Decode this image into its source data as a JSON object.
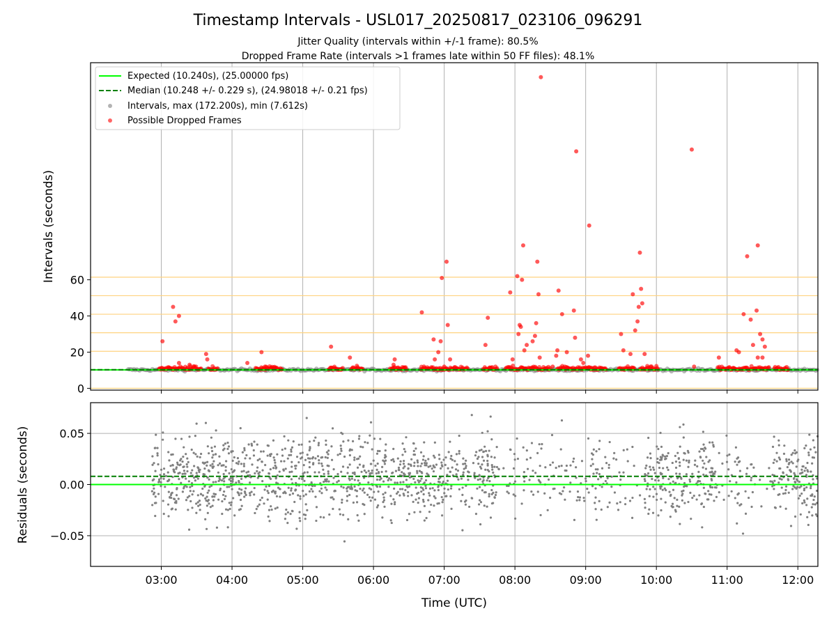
{
  "chart_data": {
    "type": "scatter",
    "title": "Timestamp Intervals - USL017_20250817_023106_096291",
    "subtitle_lines": [
      "Jitter Quality (intervals within +/-1 frame): 80.5%",
      "Dropped Frame Rate (intervals >1 frames late within 50 FF files): 48.1%"
    ],
    "xlabel": "Time (UTC)",
    "x_tick_labels": [
      "03:00",
      "04:00",
      "05:00",
      "06:00",
      "07:00",
      "08:00",
      "09:00",
      "10:00",
      "11:00",
      "12:00"
    ],
    "x_range": [
      "02:00",
      "12:17"
    ],
    "grid": true,
    "legend_position": "top-left",
    "legend": [
      {
        "label": "Expected (10.240s), (25.00000 fps)",
        "marker": "line",
        "color": "#00ff00"
      },
      {
        "label": "Median (10.248 +/- 0.229 s), (24.98018 +/- 0.21 fps)",
        "marker": "dashed-line",
        "color": "#007f00"
      },
      {
        "label": "Intervals, max (172.200s), min (7.612s)",
        "marker": "dot",
        "color": "#808080"
      },
      {
        "label": "Possible Dropped Frames",
        "marker": "dot",
        "color": "#ff0000"
      }
    ],
    "top_panel": {
      "ylabel": "Intervals (seconds)",
      "y_tick_labels": [
        "0",
        "20",
        "40",
        "60"
      ],
      "ylim": [
        -1,
        180
      ],
      "frame_multiple_lines": [
        0,
        10.24,
        20.48,
        30.72,
        40.96,
        51.2,
        61.44
      ],
      "frame_line_color": "#ffd27f",
      "expected": 10.24,
      "median": 10.248,
      "normal_interval_range": [
        "02:32",
        "12:17"
      ],
      "dropped_frame_band_segments": [
        [
          "02:58",
          "03:34"
        ],
        [
          "03:40",
          "03:48"
        ],
        [
          "04:20",
          "04:43"
        ],
        [
          "05:22",
          "05:34"
        ],
        [
          "05:41",
          "05:51"
        ],
        [
          "06:14",
          "06:28"
        ],
        [
          "06:40",
          "07:20"
        ],
        [
          "07:33",
          "07:45"
        ],
        [
          "07:52",
          "08:30"
        ],
        [
          "08:36",
          "09:18"
        ],
        [
          "09:28",
          "09:42"
        ],
        [
          "09:46",
          "10:02"
        ],
        [
          "10:52",
          "11:36"
        ],
        [
          "11:40",
          "11:52"
        ]
      ],
      "dropped_frames": [
        [
          "03:01",
          26
        ],
        [
          "03:10",
          45
        ],
        [
          "03:12",
          37
        ],
        [
          "03:15",
          40
        ],
        [
          "03:15",
          14
        ],
        [
          "03:24",
          13
        ],
        [
          "03:38",
          19
        ],
        [
          "03:39",
          16
        ],
        [
          "04:13",
          14
        ],
        [
          "04:25",
          20
        ],
        [
          "04:28",
          12
        ],
        [
          "05:24",
          23
        ],
        [
          "05:40",
          17
        ],
        [
          "06:17",
          13
        ],
        [
          "06:18",
          16
        ],
        [
          "06:41",
          42
        ],
        [
          "06:51",
          27
        ],
        [
          "06:52",
          16
        ],
        [
          "06:55",
          20
        ],
        [
          "06:57",
          26
        ],
        [
          "06:58",
          61
        ],
        [
          "07:00",
          12
        ],
        [
          "07:02",
          70
        ],
        [
          "07:03",
          35
        ],
        [
          "07:05",
          16
        ],
        [
          "07:35",
          24
        ],
        [
          "07:37",
          39
        ],
        [
          "07:56",
          53
        ],
        [
          "07:58",
          16
        ],
        [
          "08:02",
          62
        ],
        [
          "08:03",
          30
        ],
        [
          "08:04",
          35
        ],
        [
          "08:05",
          34
        ],
        [
          "08:06",
          60
        ],
        [
          "08:07",
          79
        ],
        [
          "08:08",
          21
        ],
        [
          "08:10",
          24
        ],
        [
          "08:15",
          26
        ],
        [
          "08:17",
          29
        ],
        [
          "08:18",
          36
        ],
        [
          "08:19",
          70
        ],
        [
          "08:20",
          52
        ],
        [
          "08:21",
          17
        ],
        [
          "08:22",
          172
        ],
        [
          "08:32",
          12
        ],
        [
          "08:35",
          18
        ],
        [
          "08:36",
          21
        ],
        [
          "08:37",
          54
        ],
        [
          "08:40",
          41
        ],
        [
          "08:44",
          20
        ],
        [
          "08:50",
          43
        ],
        [
          "08:51",
          28
        ],
        [
          "08:52",
          131
        ],
        [
          "08:56",
          16
        ],
        [
          "08:58",
          14
        ],
        [
          "09:02",
          18
        ],
        [
          "09:03",
          90
        ],
        [
          "09:30",
          30
        ],
        [
          "09:32",
          21
        ],
        [
          "09:38",
          19
        ],
        [
          "09:40",
          52
        ],
        [
          "09:42",
          32
        ],
        [
          "09:44",
          37
        ],
        [
          "09:45",
          45
        ],
        [
          "09:46",
          75
        ],
        [
          "09:47",
          55
        ],
        [
          "09:48",
          47
        ],
        [
          "09:50",
          19
        ],
        [
          "10:30",
          132
        ],
        [
          "10:32",
          12
        ],
        [
          "10:53",
          17
        ],
        [
          "11:08",
          21
        ],
        [
          "11:10",
          20
        ],
        [
          "11:14",
          41
        ],
        [
          "11:17",
          73
        ],
        [
          "11:20",
          38
        ],
        [
          "11:25",
          43
        ],
        [
          "11:26",
          79
        ],
        [
          "11:28",
          30
        ],
        [
          "11:30",
          27
        ],
        [
          "11:32",
          23
        ],
        [
          "11:22",
          24
        ],
        [
          "11:26",
          17
        ],
        [
          "11:30",
          17
        ]
      ]
    },
    "bottom_panel": {
      "ylabel": "Residuals (seconds)",
      "y_tick_labels": [
        "−0.05",
        "0.00",
        "0.05"
      ],
      "ylim": [
        -0.08,
        0.08
      ],
      "expected_residual": 0.0,
      "median_residual": 0.008,
      "residual_point_count": 2000
    },
    "colors": {
      "expected": "#00ff00",
      "median": "#007f00",
      "intervals": "#808080",
      "dropped": "#ff0000",
      "grid": "#b0b0b0",
      "frame_lines": "#ffd27f"
    }
  }
}
